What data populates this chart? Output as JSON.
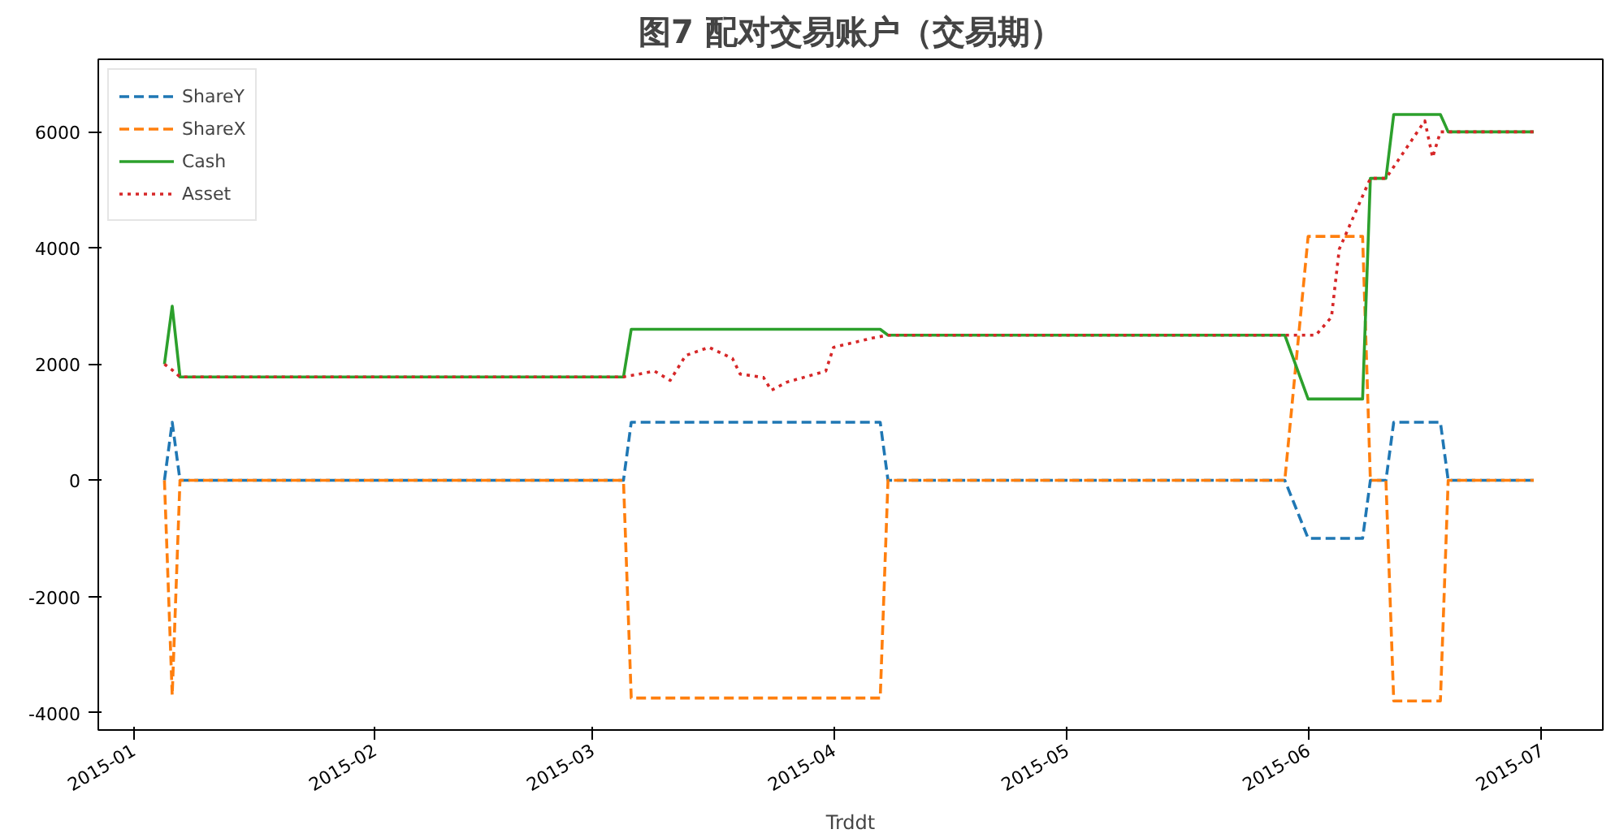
{
  "chart_data": {
    "type": "line",
    "title": "图7 配对交易账户（交易期）",
    "xlabel": "Trddt",
    "xlim": [
      "2014-12-27T12:00",
      "2015-07-08T21:00"
    ],
    "ylim": [
      -4300,
      7250
    ],
    "xticks": [
      {
        "value": "2015-01-01",
        "label": "2015-01"
      },
      {
        "value": "2015-02-01",
        "label": "2015-02"
      },
      {
        "value": "2015-03-01",
        "label": "2015-03"
      },
      {
        "value": "2015-04-01",
        "label": "2015-04"
      },
      {
        "value": "2015-05-01",
        "label": "2015-05"
      },
      {
        "value": "2015-06-01",
        "label": "2015-06"
      },
      {
        "value": "2015-07-01",
        "label": "2015-07"
      }
    ],
    "yticks": [
      -4000,
      -2000,
      0,
      2000,
      4000,
      6000
    ],
    "grid": false,
    "legend": "top left",
    "series": [
      {
        "name": "ShareY",
        "color": "#1f77b4",
        "line_style": "dashed",
        "x": [
          "2015-01-05",
          "2015-01-06",
          "2015-01-07",
          "2015-03-05",
          "2015-03-06",
          "2015-04-07",
          "2015-04-08",
          "2015-05-29",
          "2015-06-01",
          "2015-06-08",
          "2015-06-09",
          "2015-06-11",
          "2015-06-12",
          "2015-06-18",
          "2015-06-19",
          "2015-06-30"
        ],
        "values": [
          0,
          1000,
          0,
          0,
          1000,
          1000,
          0,
          0,
          -1000,
          -1000,
          0,
          0,
          1000,
          1000,
          0,
          0
        ]
      },
      {
        "name": "ShareX",
        "color": "#ff7f0e",
        "line_style": "dashed",
        "x": [
          "2015-01-05",
          "2015-01-06",
          "2015-01-07",
          "2015-03-05",
          "2015-03-06",
          "2015-04-07",
          "2015-04-08",
          "2015-05-29",
          "2015-06-01",
          "2015-06-08",
          "2015-06-09",
          "2015-06-11",
          "2015-06-12",
          "2015-06-18",
          "2015-06-19",
          "2015-06-30"
        ],
        "values": [
          0,
          -3700,
          0,
          0,
          -3750,
          -3750,
          0,
          0,
          4200,
          4200,
          0,
          0,
          -3800,
          -3800,
          0,
          0
        ]
      },
      {
        "name": "Cash",
        "color": "#2ca02c",
        "line_style": "solid",
        "x": [
          "2015-01-05",
          "2015-01-06",
          "2015-01-07",
          "2015-03-05",
          "2015-03-06",
          "2015-04-07",
          "2015-04-08",
          "2015-05-29",
          "2015-06-01",
          "2015-06-08",
          "2015-06-09",
          "2015-06-11",
          "2015-06-12",
          "2015-06-18",
          "2015-06-19",
          "2015-06-30"
        ],
        "values": [
          2000,
          3000,
          1780,
          1780,
          2600,
          2600,
          2500,
          2500,
          1400,
          1400,
          5200,
          5200,
          6300,
          6300,
          6000,
          6000
        ]
      },
      {
        "name": "Asset",
        "color": "#d62728",
        "line_style": "dotted",
        "x": [
          "2015-01-05",
          "2015-01-06",
          "2015-01-07",
          "2015-03-05",
          "2015-03-09",
          "2015-03-11",
          "2015-03-13",
          "2015-03-16",
          "2015-03-19",
          "2015-03-20",
          "2015-03-23",
          "2015-03-24",
          "2015-03-26",
          "2015-03-31",
          "2015-04-01",
          "2015-04-06",
          "2015-04-08",
          "2015-05-29",
          "2015-06-02",
          "2015-06-04",
          "2015-06-05",
          "2015-06-09",
          "2015-06-11",
          "2015-06-16",
          "2015-06-17",
          "2015-06-18",
          "2015-06-30"
        ],
        "values": [
          2000,
          1900,
          1780,
          1780,
          1880,
          1720,
          2150,
          2290,
          2100,
          1830,
          1770,
          1550,
          1690,
          1880,
          2290,
          2450,
          2500,
          2500,
          2500,
          2810,
          3980,
          5200,
          5200,
          6190,
          5560,
          6000,
          6000
        ]
      }
    ]
  }
}
